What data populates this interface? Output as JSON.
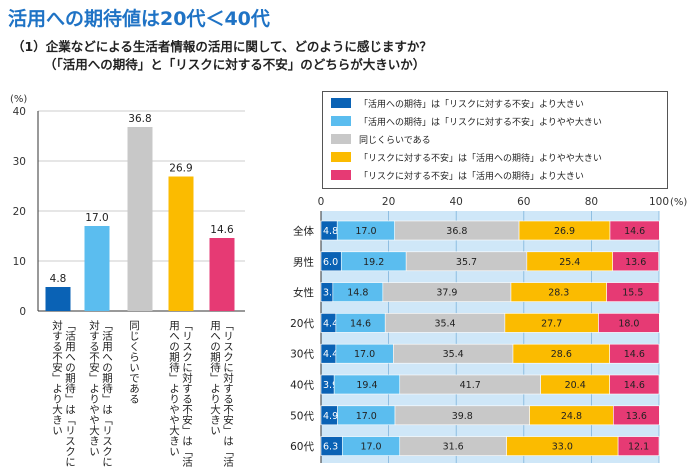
{
  "header": {
    "title": "活用への期待値は20代＜40代",
    "question_line1": "（1）企業などによる生活者情報の活用に関して、どのように感じますか？",
    "question_line2": "（「活用への期待」と「リスクに対する不安」のどちらが大きいか）"
  },
  "colors": {
    "c1": "#0a62b5",
    "c2": "#5bbdef",
    "c3": "#c8c8c8",
    "c4": "#fbbb00",
    "c5": "#e63a74"
  },
  "chart_data": [
    {
      "type": "bar",
      "ylabel": "(%)",
      "ylim": [
        0,
        40
      ],
      "yticks": [
        "0",
        "10",
        "20",
        "30",
        "40"
      ],
      "categories": [
        "「活用への期待」は「リスクに対する不安」より大きい",
        "「活用への期待」は「リスクに対する不安」よりやや大きい",
        "同じくらいである",
        "「リスクに対する不安」は「活用への期待」よりやや大きい",
        "「リスクに対する不安」は「活用への期待」より大きい"
      ],
      "values": [
        4.8,
        17.0,
        36.8,
        26.9,
        14.6
      ],
      "value_labels": [
        "4.8",
        "17.0",
        "36.8",
        "26.9",
        "14.6"
      ]
    },
    {
      "type": "bar",
      "orientation": "horizontal-stacked",
      "xlim": [
        0,
        100
      ],
      "xticks": [
        "0",
        "20",
        "40",
        "60",
        "80",
        "100"
      ],
      "xunit": "(%)",
      "legend": [
        "「活用への期待」は「リスクに対する不安」より大きい",
        "「活用への期待」は「リスクに対する不安」よりやや大きい",
        "同じくらいである",
        "「リスクに対する不安」は「活用への期待」よりやや大きい",
        "「リスクに対する不安」は「活用への期待」より大きい"
      ],
      "categories": [
        "全体",
        "男性",
        "女性",
        "20代",
        "30代",
        "40代",
        "50代",
        "60代"
      ],
      "rows": [
        [
          "4.8",
          "17.0",
          "36.8",
          "26.9",
          "14.6"
        ],
        [
          "6.0",
          "19.2",
          "35.7",
          "25.4",
          "13.6"
        ],
        [
          "3.5",
          "14.8",
          "37.9",
          "28.3",
          "15.5"
        ],
        [
          "4.4",
          "14.6",
          "35.4",
          "27.7",
          "18.0"
        ],
        [
          "4.4",
          "17.0",
          "35.4",
          "28.6",
          "14.6"
        ],
        [
          "3.9",
          "19.4",
          "41.7",
          "20.4",
          "14.6"
        ],
        [
          "4.9",
          "17.0",
          "39.8",
          "24.8",
          "13.6"
        ],
        [
          "6.3",
          "17.0",
          "31.6",
          "33.0",
          "12.1"
        ]
      ]
    }
  ]
}
